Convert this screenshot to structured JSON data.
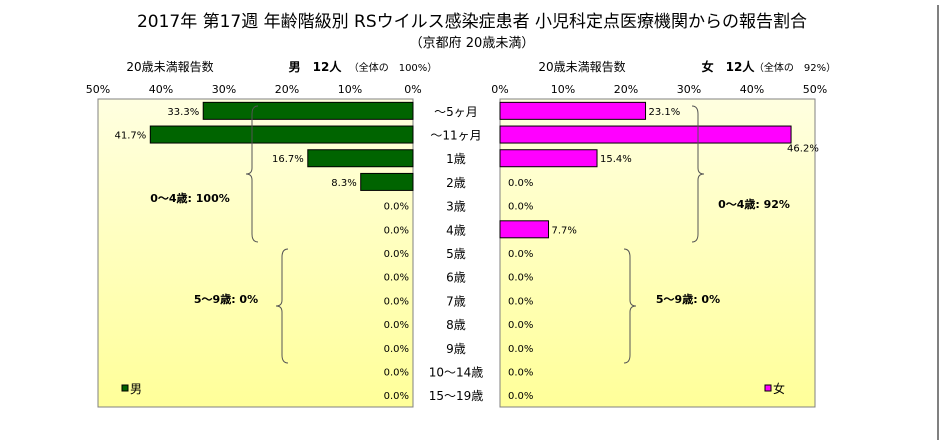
{
  "title": "2017年 第17週 年齢階級別 RSウイルス感染症患者 小児科定点医療機関からの報告割合",
  "subtitle": "（京都府 20歳未満）",
  "colors": {
    "male": "#006400",
    "female": "#ff00ff",
    "plot_bg_top": "#ffffe0",
    "plot_bg_bottom": "#ffff99"
  },
  "chart_data": {
    "type": "bar",
    "categories": [
      "～5ヶ月",
      "～11ヶ月",
      "1歳",
      "2歳",
      "3歳",
      "4歳",
      "5歳",
      "6歳",
      "7歳",
      "8歳",
      "9歳",
      "10～14歳",
      "15～19歳"
    ],
    "series": [
      {
        "name": "男",
        "values": [
          33.3,
          41.7,
          16.7,
          8.3,
          0.0,
          0.0,
          0.0,
          0.0,
          0.0,
          0.0,
          0.0,
          0.0,
          0.0
        ],
        "labels": [
          "33.3%",
          "41.7%",
          "16.7%",
          "8.3%",
          "0.0%",
          "0.0%",
          "0.0%",
          "0.0%",
          "0.0%",
          "0.0%",
          "0.0%",
          "0.0%",
          "0.0%"
        ],
        "header_left": "20歳未満報告数",
        "header_right": "男　12人",
        "header_note": "（全体の　100%）",
        "ticks": [
          "50%",
          "40%",
          "30%",
          "20%",
          "10%",
          "0%"
        ],
        "bracket_labels": [
          "0～4歳: 100%",
          "5～9歳: 0%"
        ]
      },
      {
        "name": "女",
        "values": [
          23.1,
          46.2,
          15.4,
          0.0,
          0.0,
          7.7,
          0.0,
          0.0,
          0.0,
          0.0,
          0.0,
          0.0,
          0.0
        ],
        "labels": [
          "23.1%",
          "46.2%",
          "15.4%",
          "0.0%",
          "0.0%",
          "7.7%",
          "0.0%",
          "0.0%",
          "0.0%",
          "0.0%",
          "0.0%",
          "0.0%",
          "0.0%"
        ],
        "header_left": "20歳未満報告数",
        "header_right": "女　12人",
        "header_note": "（全体の　92%）",
        "ticks": [
          "0%",
          "10%",
          "20%",
          "30%",
          "40%",
          "50%"
        ],
        "bracket_labels": [
          "0～4歳: 92%",
          "5～9歳: 0%"
        ]
      }
    ],
    "xlim": [
      0,
      50
    ],
    "legend": [
      "男",
      "女"
    ],
    "legend_position": "bottom-left / bottom-right"
  }
}
